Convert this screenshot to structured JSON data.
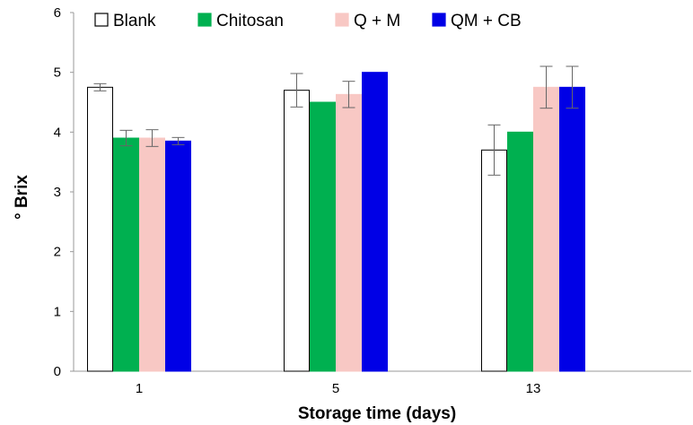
{
  "chart_data": {
    "type": "bar",
    "title": "",
    "xlabel": "Storage time (days)",
    "ylabel": "° Brix",
    "categories": [
      "1",
      "5",
      "13"
    ],
    "ylim": [
      0,
      6
    ],
    "yticks": [
      0,
      1,
      2,
      3,
      4,
      5,
      6
    ],
    "grid": false,
    "legend_position": "top-left",
    "series": [
      {
        "name": "Blank",
        "color": "#ffffff",
        "stroke": "#000000",
        "values": [
          4.75,
          4.7,
          3.7
        ],
        "errors": [
          0.06,
          0.28,
          0.42
        ]
      },
      {
        "name": "Chitosan",
        "color": "#00b050",
        "stroke": "#00b050",
        "values": [
          3.9,
          4.5,
          4.0
        ],
        "errors": [
          0.13,
          0.0,
          0.0
        ]
      },
      {
        "name": "Q + M",
        "color": "#f8c8c4",
        "stroke": "#f8c8c4",
        "values": [
          3.9,
          4.63,
          4.75
        ],
        "errors": [
          0.14,
          0.22,
          0.35
        ]
      },
      {
        "name": "QM + CB",
        "color": "#0000e6",
        "stroke": "#0000e6",
        "values": [
          3.85,
          5.0,
          4.75
        ],
        "errors": [
          0.06,
          0.0,
          0.35
        ]
      }
    ]
  }
}
